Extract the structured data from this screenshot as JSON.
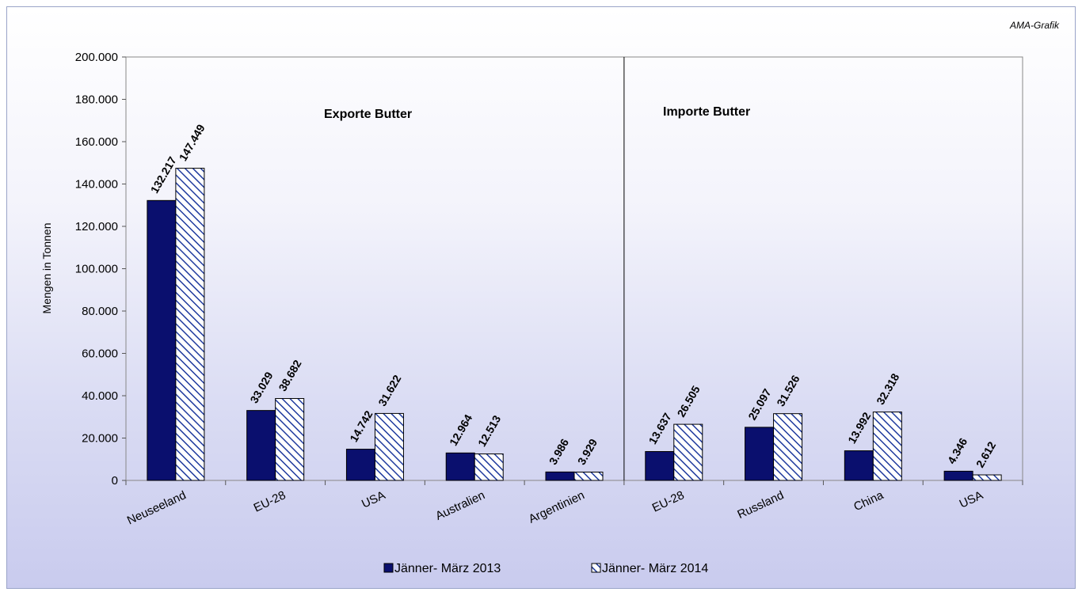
{
  "source_label": "AMA-Grafik",
  "colors": {
    "series_2013": "#0a0f6e",
    "series_2014_stripe": "#1f3a9e",
    "series_2014_bg": "#ffffff"
  },
  "chart_data": {
    "type": "bar",
    "ylabel": "Mengen in Tonnen",
    "ylim": [
      0,
      200000
    ],
    "yticks": [
      "0",
      "20.000",
      "40.000",
      "60.000",
      "80.000",
      "100.000",
      "120.000",
      "140.000",
      "160.000",
      "180.000",
      "200.000"
    ],
    "grid": false,
    "legend_position": "bottom",
    "sections": [
      {
        "title": "Exporte Butter",
        "categories": [
          "Neuseeland",
          "EU-28",
          "USA",
          "Australien",
          "Argentinien"
        ]
      },
      {
        "title": "Importe Butter",
        "categories": [
          "EU-28",
          "Russland",
          "China",
          "USA"
        ]
      }
    ],
    "categories": [
      "Neuseeland",
      "EU-28",
      "USA",
      "Australien",
      "Argentinien",
      "EU-28",
      "Russland",
      "China",
      "USA"
    ],
    "series": [
      {
        "name": "Jänner- März 2013",
        "values": [
          132217,
          33029,
          14742,
          12964,
          3986,
          13637,
          25097,
          13992,
          4346
        ],
        "labels": [
          "132.217",
          "33.029",
          "14.742",
          "12.964",
          "3.986",
          "13.637",
          "25.097",
          "13.992",
          "4.346"
        ]
      },
      {
        "name": "Jänner- März 2014",
        "values": [
          147449,
          38682,
          31622,
          12513,
          3929,
          26505,
          31526,
          32318,
          2612
        ],
        "labels": [
          "147.449",
          "38.682",
          "31.622",
          "12.513",
          "3.929",
          "26.505",
          "31.526",
          "32.318",
          "2.612"
        ]
      }
    ]
  }
}
